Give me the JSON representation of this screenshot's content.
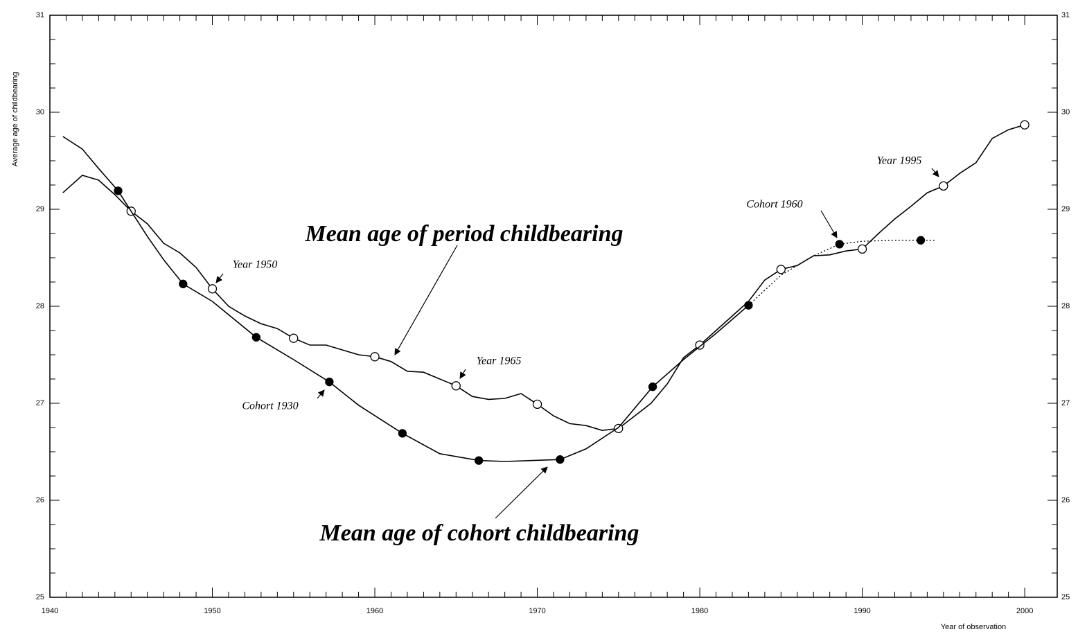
{
  "chart_data": {
    "type": "line",
    "xlabel": "Year of observation",
    "ylabel": "Average age of childbearing",
    "xlim": [
      1940,
      2002
    ],
    "ylim": [
      25,
      31
    ],
    "xticks": [
      1940,
      1950,
      1960,
      1970,
      1980,
      1990,
      2000
    ],
    "yticks": [
      25,
      26,
      27,
      28,
      29,
      30,
      31
    ],
    "color": "#000000",
    "annotations": [
      "Mean age of period childbearing",
      "Mean age of cohort childbearing",
      "Year 1950",
      "Year 1965",
      "Cohort 1930",
      "Cohort 1960",
      "Year 1995"
    ],
    "series": [
      {
        "style": "solid",
        "marker": "none",
        "x": [
          1940.8,
          1942,
          1943,
          1944,
          1945,
          1946,
          1947,
          1948,
          1949,
          1950,
          1951,
          1952,
          1953,
          1954,
          1955,
          1956,
          1957,
          1958,
          1959,
          1960,
          1961,
          1962,
          1963,
          1964,
          1965,
          1966,
          1967,
          1968,
          1969,
          1970,
          1971,
          1972,
          1973,
          1974,
          1975,
          1976,
          1977,
          1978,
          1979,
          1980,
          1981,
          1982,
          1983,
          1984,
          1985,
          1986,
          1987,
          1988,
          1989,
          1990,
          1991,
          1992,
          1993,
          1994,
          1995,
          1996,
          1997,
          1998,
          1999,
          2000
        ],
        "values": [
          29.17,
          29.35,
          29.3,
          29.15,
          28.98,
          28.85,
          28.65,
          28.55,
          28.4,
          28.18,
          28.0,
          27.9,
          27.82,
          27.77,
          27.67,
          27.6,
          27.6,
          27.55,
          27.5,
          27.48,
          27.43,
          27.33,
          27.32,
          27.25,
          27.18,
          27.07,
          27.04,
          27.05,
          27.1,
          26.99,
          26.87,
          26.79,
          26.77,
          26.72,
          26.74,
          26.87,
          27.0,
          27.2,
          27.47,
          27.6,
          27.75,
          27.9,
          28.05,
          28.27,
          28.38,
          28.42,
          28.52,
          28.53,
          28.57,
          28.59,
          28.75,
          28.9,
          29.03,
          29.17,
          29.24,
          29.37,
          29.48,
          29.73,
          29.82,
          29.87
        ]
      },
      {
        "style": "none",
        "marker": "open",
        "x": [
          1945,
          1950,
          1955,
          1960,
          1965,
          1970,
          1975,
          1980,
          1985,
          1990,
          1995,
          2000
        ],
        "values": [
          28.98,
          28.18,
          27.67,
          27.48,
          27.18,
          26.99,
          26.74,
          27.6,
          28.38,
          28.59,
          29.24,
          29.87
        ]
      },
      {
        "style": "solid",
        "marker": "none",
        "x": [
          1940.8,
          1942,
          1943,
          1944.2,
          1945,
          1946,
          1947,
          1948.2,
          1950,
          1952.7,
          1955,
          1957.2,
          1959,
          1961.7,
          1964,
          1966.4,
          1968,
          1971.4,
          1973,
          1975,
          1977.1,
          1979,
          1981,
          1983
        ],
        "values": [
          29.75,
          29.62,
          29.42,
          29.19,
          28.98,
          28.72,
          28.48,
          28.23,
          28.05,
          27.68,
          27.45,
          27.22,
          26.98,
          26.69,
          26.48,
          26.41,
          26.4,
          26.42,
          26.53,
          26.75,
          27.17,
          27.45,
          27.72,
          28.01
        ]
      },
      {
        "style": "dotted",
        "marker": "none",
        "x": [
          1983,
          1985,
          1987,
          1988.6,
          1990,
          1992,
          1993.6,
          1994.5
        ],
        "values": [
          28.01,
          28.32,
          28.52,
          28.64,
          28.67,
          28.68,
          28.68,
          28.68
        ]
      },
      {
        "style": "none",
        "marker": "filled",
        "x": [
          1944.2,
          1948.2,
          1952.7,
          1957.2,
          1961.7,
          1966.4,
          1971.4,
          1977.1,
          1983,
          1988.6,
          1993.6
        ],
        "values": [
          29.19,
          28.23,
          27.68,
          27.22,
          26.69,
          26.41,
          26.42,
          27.17,
          28.01,
          28.64,
          28.68
        ]
      }
    ]
  }
}
